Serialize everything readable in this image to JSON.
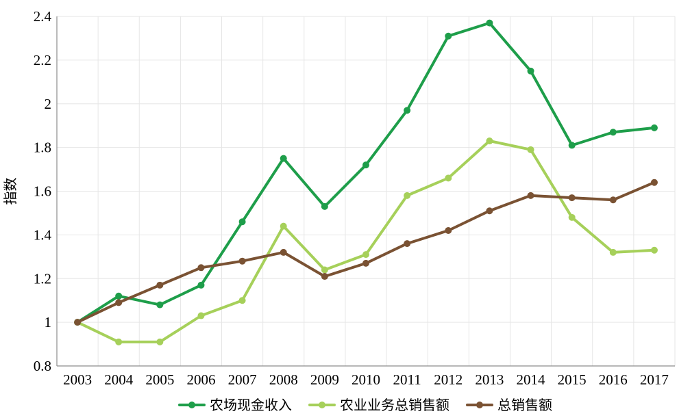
{
  "chart_data": {
    "type": "line",
    "title": "",
    "xlabel": "",
    "ylabel": "指数",
    "ylim": [
      0.8,
      2.4
    ],
    "yticks": [
      "0.8",
      "1",
      "1.2",
      "1.4",
      "1.6",
      "1.8",
      "2",
      "2.2",
      "2.4"
    ],
    "yticks_values": [
      0.8,
      1.0,
      1.2,
      1.4,
      1.6,
      1.8,
      2.0,
      2.2,
      2.4
    ],
    "grid": true,
    "legend_position": "bottom",
    "categories": [
      "2003",
      "2004",
      "2005",
      "2006",
      "2007",
      "2008",
      "2009",
      "2010",
      "2011",
      "2012",
      "2013",
      "2014",
      "2015",
      "2016",
      "2017"
    ],
    "series": [
      {
        "name": "农场现金收入",
        "color": "#1e9e4a",
        "values": [
          1.0,
          1.12,
          1.08,
          1.17,
          1.46,
          1.75,
          1.53,
          1.72,
          1.97,
          2.31,
          2.37,
          2.15,
          1.81,
          1.87,
          1.89
        ]
      },
      {
        "name": "农业业务总销售额",
        "color": "#a6d05a",
        "values": [
          1.0,
          0.91,
          0.91,
          1.03,
          1.1,
          1.44,
          1.24,
          1.31,
          1.58,
          1.66,
          1.83,
          1.79,
          1.48,
          1.32,
          1.33
        ]
      },
      {
        "name": "总销售额",
        "color": "#7a5233",
        "values": [
          1.0,
          1.09,
          1.17,
          1.25,
          1.28,
          1.32,
          1.21,
          1.27,
          1.36,
          1.42,
          1.51,
          1.58,
          1.57,
          1.56,
          1.64
        ]
      }
    ]
  }
}
